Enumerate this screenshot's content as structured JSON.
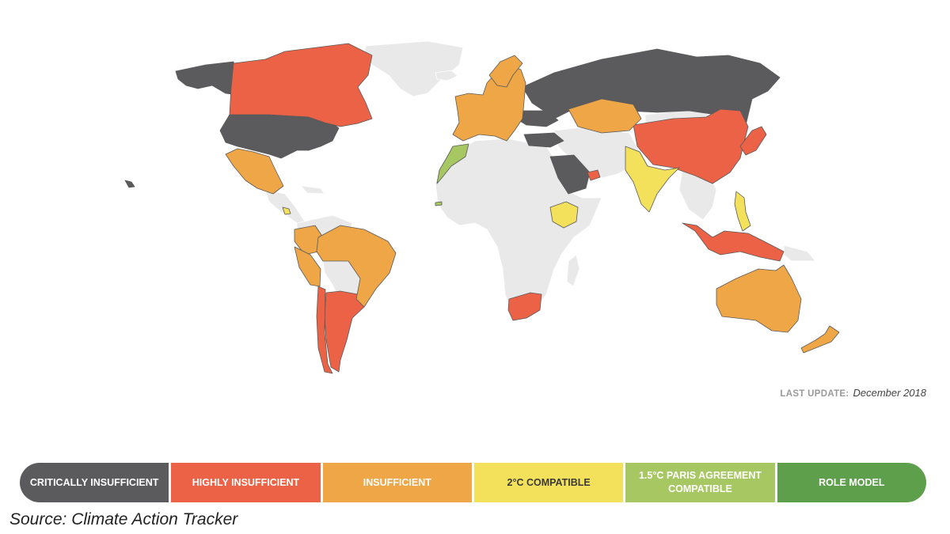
{
  "last_update": {
    "label": "LAST UPDATE:",
    "value": "December 2018"
  },
  "legend": [
    {
      "label": "CRITICALLY INSUFFICIENT",
      "color": "#5b5a5c",
      "text_color": "#ffffff"
    },
    {
      "label": "HIGHLY INSUFFICIENT",
      "color": "#ec6246",
      "text_color": "#ffffff"
    },
    {
      "label": "INSUFFICIENT",
      "color": "#eea646",
      "text_color": "#ffffff"
    },
    {
      "label": "2°C COMPATIBLE",
      "color": "#f4e15b",
      "text_color": "#3a3a3a"
    },
    {
      "label": "1.5°C PARIS AGREEMENT COMPATIBLE",
      "color": "#a6c761",
      "text_color": "#ffffff"
    },
    {
      "label": "ROLE MODEL",
      "color": "#5e9f4b",
      "text_color": "#ffffff"
    }
  ],
  "source": "Source: Climate Action Tracker",
  "map_colors": {
    "no_data": "#e9e9e9",
    "critically_insufficient": "#5b5a5c",
    "highly_insufficient": "#ec6246",
    "insufficient": "#eea646",
    "two_degree_compatible": "#f4e15b",
    "one_point_five_compatible": "#a6c761"
  },
  "countries": {
    "critically_insufficient": [
      "United States",
      "Russia",
      "Saudi Arabia",
      "Turkey",
      "Ukraine"
    ],
    "highly_insufficient": [
      "Canada",
      "China",
      "Japan",
      "Argentina",
      "Chile",
      "South Africa",
      "Indonesia",
      "UAE"
    ],
    "insufficient": [
      "European Union",
      "Norway",
      "Switzerland",
      "Kazakhstan",
      "Mexico",
      "Brazil",
      "Peru",
      "Colombia",
      "Australia",
      "New Zealand"
    ],
    "two_degree_compatible": [
      "India",
      "Ethiopia",
      "Philippines",
      "Costa Rica",
      "Bhutan"
    ],
    "one_point_five_compatible": [
      "Morocco",
      "The Gambia"
    ]
  }
}
